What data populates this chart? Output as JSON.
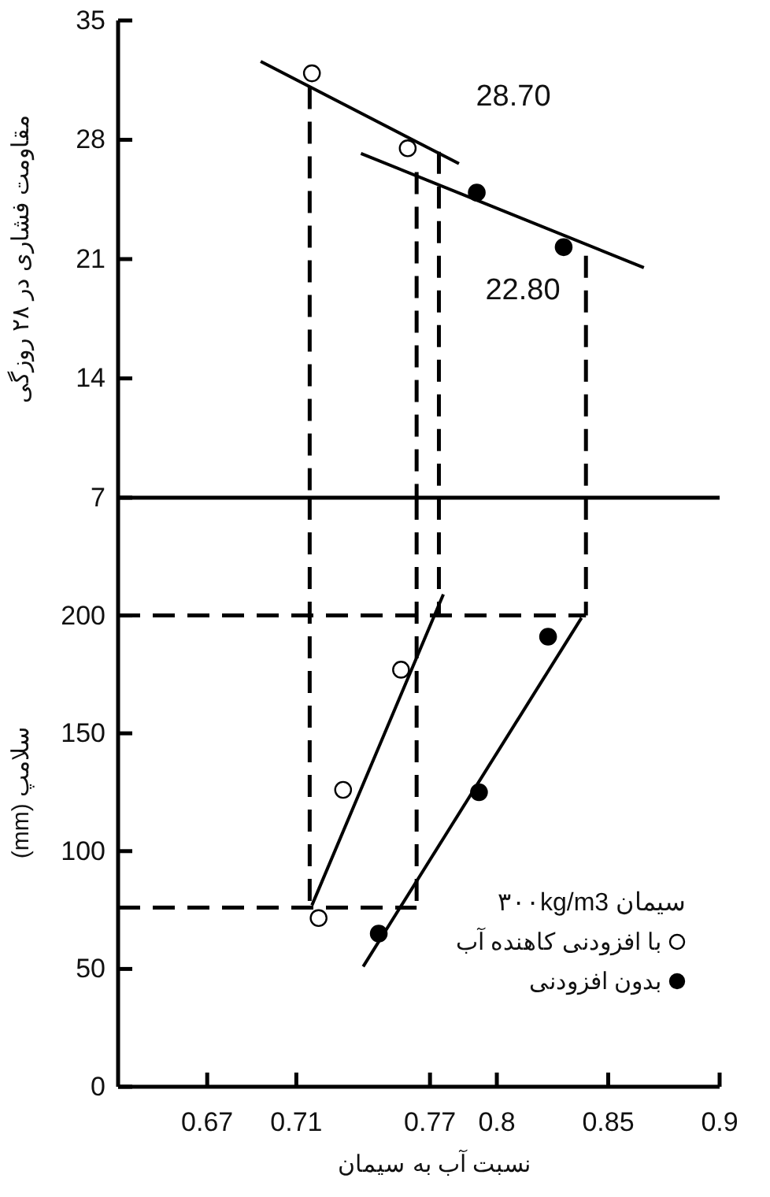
{
  "chart_data": [
    {
      "type": "scatter",
      "ylabel": "مقاومت فشاری در ۲۸ روزگی",
      "xlim": [
        0.63,
        0.9
      ],
      "ylim": [
        7,
        35
      ],
      "yticks": [
        7,
        14,
        21,
        28,
        35
      ],
      "tick_labels": "y",
      "grid": false,
      "legend": false,
      "annotations": [
        "28.70",
        "22.80"
      ],
      "series": [
        {
          "type": "line",
          "color": "#000000",
          "line_style": "solid",
          "x": [
            0.694,
            0.783
          ],
          "values": [
            32.6,
            26.6
          ]
        },
        {
          "type": "line",
          "color": "#000000",
          "line_style": "solid",
          "x": [
            0.739,
            0.866
          ],
          "values": [
            27.2,
            20.5
          ]
        },
        {
          "type": "line",
          "color": "#000000",
          "line_style": "dashed",
          "x": [
            0.716,
            0.716
          ],
          "values": [
            31.1,
            7
          ]
        },
        {
          "type": "line",
          "color": "#000000",
          "line_style": "dashed",
          "x": [
            0.764,
            0.764
          ],
          "values": [
            26.1,
            7
          ]
        },
        {
          "type": "line",
          "color": "#000000",
          "line_style": "dashed",
          "x": [
            0.774,
            0.774
          ],
          "values": [
            27.3,
            7
          ]
        },
        {
          "type": "line",
          "color": "#000000",
          "line_style": "dashed",
          "x": [
            0.84,
            0.84
          ],
          "values": [
            21.2,
            7
          ]
        },
        {
          "color": "#ffffff",
          "marker": "circle",
          "x": [
            0.717,
            0.76
          ],
          "values": [
            31.9,
            27.5
          ]
        },
        {
          "color": "#000000",
          "marker": "circle",
          "x": [
            0.791,
            0.83
          ],
          "values": [
            24.9,
            21.7
          ]
        }
      ]
    },
    {
      "type": "scatter",
      "xlabel": "نسبت آب به سیمان",
      "ylabel": "سلامپ (mm)",
      "legend_title": "سیمان ۳۰۰kg/m3",
      "xlim": [
        0.63,
        0.9
      ],
      "xticks": [
        0.67,
        0.71,
        0.77,
        0.8,
        0.85,
        0.9
      ],
      "ylim": [
        0,
        250
      ],
      "yticks": [
        0,
        50,
        100,
        150,
        200
      ],
      "grid": false,
      "legend": "bottom right",
      "series": [
        {
          "type": "line",
          "color": "#000000",
          "line_style": "solid",
          "x": [
            0.717,
            0.776
          ],
          "values": [
            77,
            209
          ]
        },
        {
          "type": "line",
          "color": "#000000",
          "line_style": "solid",
          "x": [
            0.74,
            0.838
          ],
          "values": [
            51,
            199
          ]
        },
        {
          "type": "line",
          "color": "#000000",
          "line_style": "dashed",
          "x": [
            0.716,
            0.716
          ],
          "values": [
            250,
            76
          ]
        },
        {
          "type": "line",
          "color": "#000000",
          "line_style": "dashed",
          "x": [
            0.63,
            0.764
          ],
          "values": [
            76,
            76
          ]
        },
        {
          "type": "line",
          "color": "#000000",
          "line_style": "dashed",
          "x": [
            0.764,
            0.764
          ],
          "values": [
            250,
            76
          ]
        },
        {
          "type": "line",
          "color": "#000000",
          "line_style": "dashed",
          "x": [
            0.774,
            0.774
          ],
          "values": [
            250,
            200
          ]
        },
        {
          "type": "line",
          "color": "#000000",
          "line_style": "dashed",
          "x": [
            0.84,
            0.84
          ],
          "values": [
            250,
            200
          ]
        },
        {
          "type": "line",
          "color": "#000000",
          "line_style": "dashed",
          "x": [
            0.63,
            0.84
          ],
          "values": [
            200,
            200
          ]
        },
        {
          "name": "با افزودنی کاهنده آب",
          "color": "#ffffff",
          "marker": "circle",
          "x": [
            0.72,
            0.731,
            0.757
          ],
          "values": [
            71.6,
            126,
            177
          ]
        },
        {
          "name": "بدون افزودنی",
          "color": "#000000",
          "marker": "circle",
          "x": [
            0.747,
            0.792,
            0.823
          ],
          "values": [
            65,
            125,
            191
          ]
        }
      ]
    }
  ]
}
